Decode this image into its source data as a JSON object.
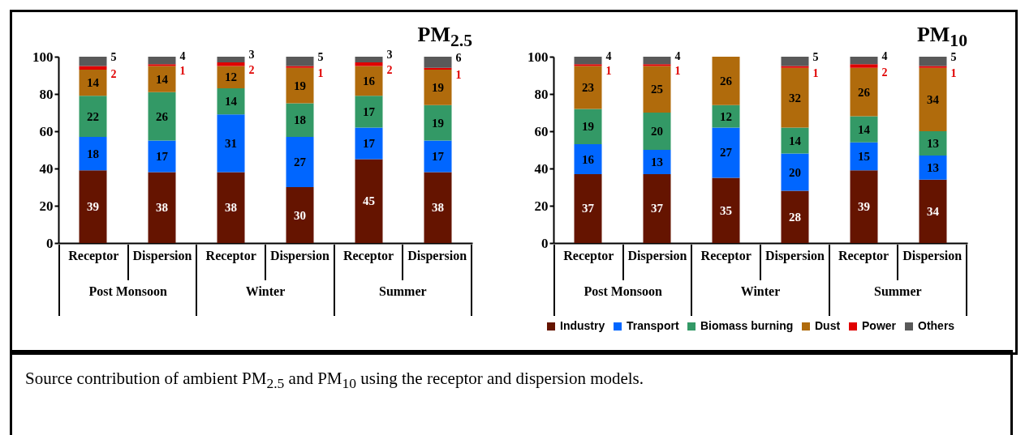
{
  "chart_data": [
    {
      "type": "bar",
      "stacked": true,
      "title": "PM$_{2.5}$",
      "categories": [
        "Receptor",
        "Dispersion",
        "Receptor",
        "Dispersion",
        "Receptor",
        "Dispersion"
      ],
      "series": [
        {
          "color": "#651400",
          "values": [
            39,
            38,
            38,
            30,
            45,
            38
          ]
        },
        {
          "color": "#0066ff",
          "values": [
            18,
            17,
            31,
            27,
            17,
            17
          ]
        },
        {
          "color": "#339966",
          "values": [
            22,
            26,
            14,
            18,
            17,
            19
          ]
        },
        {
          "color": "#b06b0c",
          "values": [
            14,
            14,
            12,
            19,
            16,
            19
          ]
        },
        {
          "color": "#e00000",
          "values": [
            2,
            1,
            2,
            1,
            2,
            1
          ]
        },
        {
          "color": "#595959",
          "values": [
            5,
            4,
            3,
            5,
            3,
            6
          ]
        }
      ],
      "ylim": [
        0,
        100
      ],
      "yticks": [
        0,
        20,
        40,
        60,
        80,
        100
      ],
      "data_labels": true,
      "annotations": [
        "Post Monsoon",
        "Winter",
        "Summer"
      ]
    },
    {
      "type": "bar",
      "stacked": true,
      "title": "PM$_{10}$",
      "categories": [
        "Receptor",
        "Dispersion",
        "Receptor",
        "Dispersion",
        "Receptor",
        "Dispersion"
      ],
      "series": [
        {
          "name": "Industry",
          "color": "#651400",
          "values": [
            37,
            37,
            35,
            28,
            39,
            34
          ]
        },
        {
          "name": "Transport",
          "color": "#0066ff",
          "values": [
            16,
            13,
            27,
            20,
            15,
            13
          ]
        },
        {
          "name": "Biomass burning",
          "color": "#339966",
          "values": [
            19,
            20,
            12,
            14,
            14,
            13
          ]
        },
        {
          "name": "Dust",
          "color": "#b06b0c",
          "values": [
            23,
            25,
            26,
            32,
            26,
            34
          ]
        },
        {
          "name": "Power",
          "color": "#e00000",
          "values": [
            1,
            1,
            null,
            1,
            2,
            1
          ]
        },
        {
          "name": "Others",
          "color": "#595959",
          "values": [
            4,
            4,
            null,
            5,
            4,
            5
          ]
        }
      ],
      "ylim": [
        0,
        100
      ],
      "yticks": [
        0,
        20,
        40,
        60,
        80,
        100
      ],
      "data_labels": true,
      "legend": "bottom right",
      "annotations": [
        "Post Monsoon",
        "Winter",
        "Summer",
        "Source contribution of ambient PM$_{2.5}$ and PM$_{10}$ using the receptor and dispersion models."
      ]
    }
  ]
}
